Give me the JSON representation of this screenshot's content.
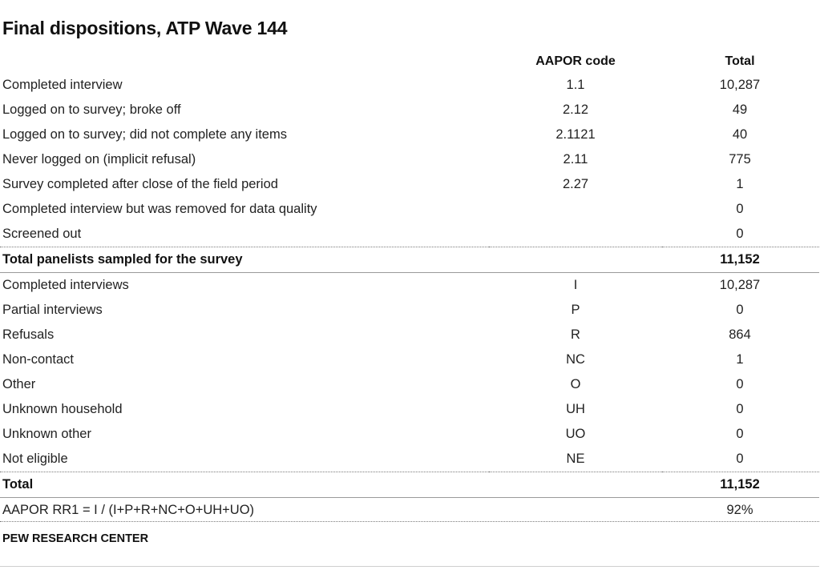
{
  "title": "Final dispositions, ATP Wave 144",
  "table": {
    "headers": {
      "label": "",
      "code": "AAPOR code",
      "total": "Total"
    },
    "section1": [
      {
        "label": "Completed interview",
        "code": "1.1",
        "total": "10,287"
      },
      {
        "label": "Logged on to survey; broke off",
        "code": "2.12",
        "total": "49"
      },
      {
        "label": "Logged on to survey; did not complete any items",
        "code": "2.1121",
        "total": "40"
      },
      {
        "label": "Never logged on (implicit refusal)",
        "code": "2.11",
        "total": "775"
      },
      {
        "label": "Survey completed after close of the field period",
        "code": "2.27",
        "total": "1"
      },
      {
        "label": "Completed interview but was removed for data quality",
        "code": "",
        "total": "0"
      },
      {
        "label": "Screened out",
        "code": "",
        "total": "0"
      }
    ],
    "subtotal": {
      "label": "Total panelists sampled for the survey",
      "code": "",
      "total": "11,152"
    },
    "section2": [
      {
        "label": "Completed interviews",
        "code": "I",
        "total": "10,287"
      },
      {
        "label": "Partial interviews",
        "code": "P",
        "total": "0"
      },
      {
        "label": "Refusals",
        "code": "R",
        "total": "864"
      },
      {
        "label": "Non-contact",
        "code": "NC",
        "total": "1"
      },
      {
        "label": "Other",
        "code": "O",
        "total": "0"
      },
      {
        "label": "Unknown household",
        "code": "UH",
        "total": "0"
      },
      {
        "label": "Unknown other",
        "code": "UO",
        "total": "0"
      },
      {
        "label": "Not eligible",
        "code": "NE",
        "total": "0"
      }
    ],
    "grand_total": {
      "label": "Total",
      "code": "",
      "total": "11,152"
    },
    "rate": {
      "label": "AAPOR RR1 = I / (I+P+R+NC+O+UH+UO)",
      "code": "",
      "total": "92%"
    }
  },
  "source": "PEW RESEARCH CENTER"
}
